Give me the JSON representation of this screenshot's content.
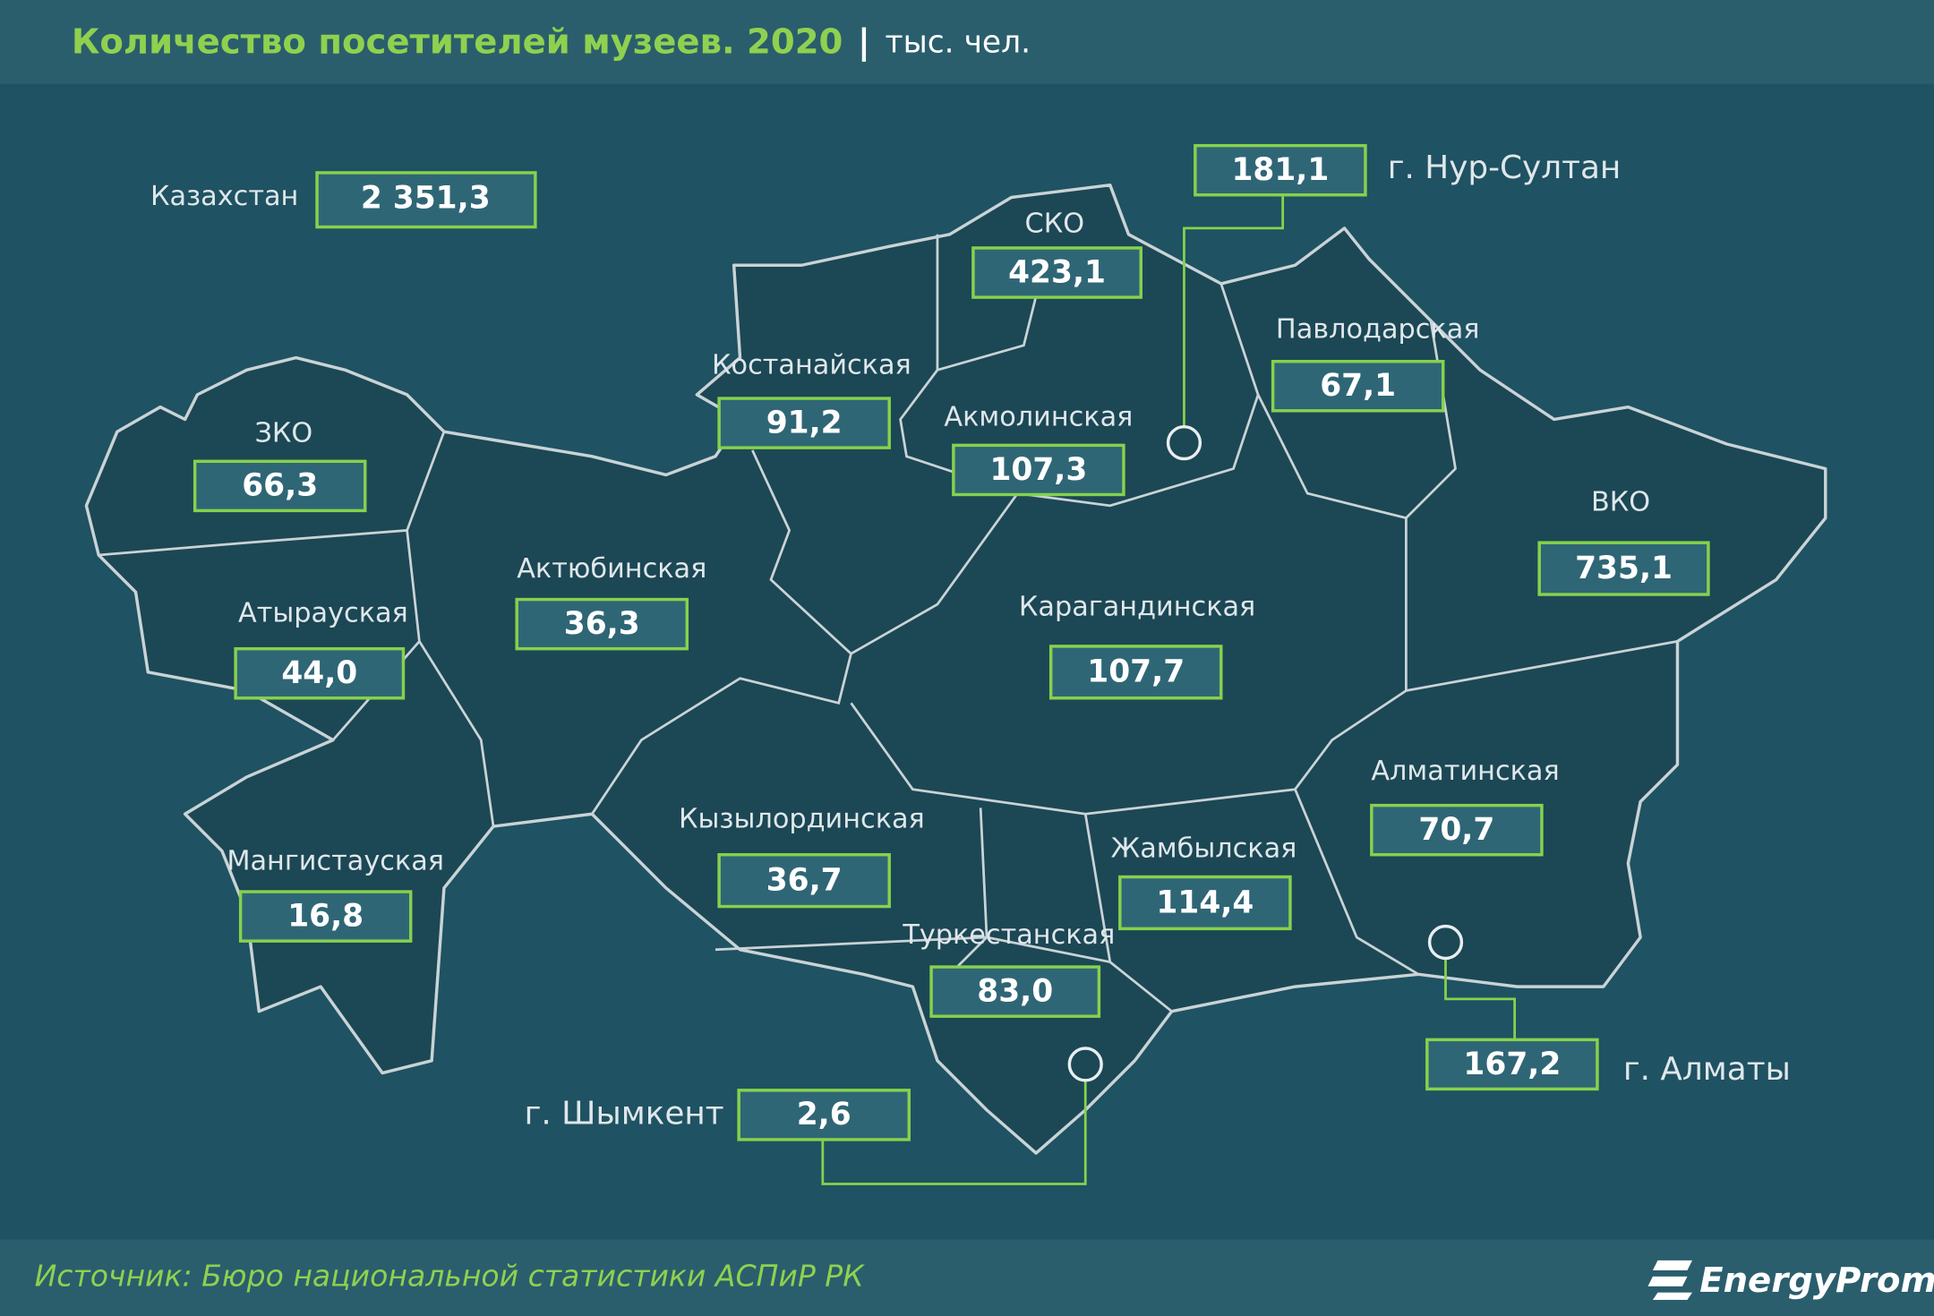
{
  "header": {
    "title": "Количество посетителей музеев. 2020",
    "separator": "|",
    "unit": "тыс. чел."
  },
  "total": {
    "label": "Казахстан",
    "value": "2 351,3"
  },
  "regions": [
    {
      "name": "ЗКО",
      "value": "66,3"
    },
    {
      "name": "Атырауская",
      "value": "44,0"
    },
    {
      "name": "Актюбинская",
      "value": "36,3"
    },
    {
      "name": "Мангистауская",
      "value": "16,8"
    },
    {
      "name": "Костанайская",
      "value": "91,2"
    },
    {
      "name": "СКО",
      "value": "423,1"
    },
    {
      "name": "Акмолинская",
      "value": "107,3"
    },
    {
      "name": "Павлодарская",
      "value": "67,1"
    },
    {
      "name": "ВКО",
      "value": "735,1"
    },
    {
      "name": "Карагандинская",
      "value": "107,7"
    },
    {
      "name": "Кызылординская",
      "value": "36,7"
    },
    {
      "name": "Жамбылская",
      "value": "114,4"
    },
    {
      "name": "Туркестанская",
      "value": "83,0"
    },
    {
      "name": "Алматинская",
      "value": "70,7"
    }
  ],
  "cities": [
    {
      "name": "г. Нур-Султан",
      "value": "181,1"
    },
    {
      "name": "г. Алматы",
      "value": "167,2"
    },
    {
      "name": "г. Шымкент",
      "value": "2,6"
    }
  ],
  "source": "Источник: Бюро национальной  статистики АСПиР РК",
  "logo": "EnergyProm"
}
